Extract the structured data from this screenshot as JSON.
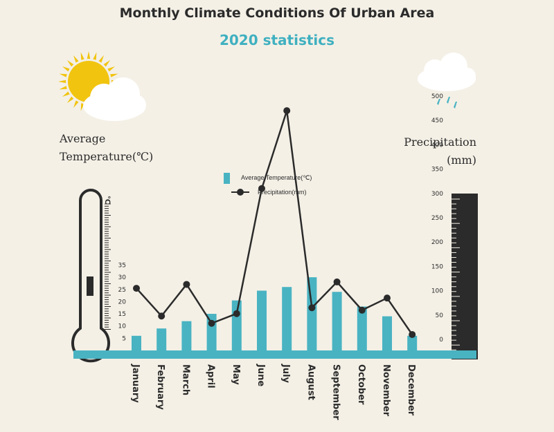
{
  "title": "Monthly Climate Conditions  Of Urban Area",
  "subtitle": "2020 statistics",
  "left_axis_label_line1": "Average",
  "left_axis_label_line2": "Temperature(℃)",
  "right_axis_label_line1": "Precipitation",
  "right_axis_label_line2": "(mm)",
  "thermometer_unit": "℃",
  "colors": {
    "bar": "#49b3c2",
    "line": "#2b2b2b",
    "background": "#f4f0e6",
    "title": "#2b2b2b",
    "subtitle": "#3fb0c0",
    "sun": "#f1c40f",
    "rain": "#49b3c2"
  },
  "icons": [
    "sun-cloud-icon",
    "rain-cloud-icon",
    "thermometer-icon",
    "ruler-icon"
  ],
  "chart_data": {
    "type": "bar",
    "categories": [
      "January",
      "February",
      "March",
      "April",
      "May",
      "June",
      "July",
      "August",
      "September",
      "October",
      "November",
      "December"
    ],
    "series": [
      {
        "name": "Average Temperature(℃)",
        "type": "bar",
        "axis": "left",
        "values": [
          6,
          9,
          12,
          15,
          20.5,
          24.5,
          26,
          30,
          24,
          18,
          14,
          6
        ]
      },
      {
        "name": "Precipitation(mm)",
        "type": "line",
        "axis": "right",
        "values": [
          105,
          48,
          113,
          33,
          53,
          310,
          470,
          65,
          118,
          60,
          85,
          10
        ]
      }
    ],
    "left_axis": {
      "ticks": [
        5,
        10,
        15,
        20,
        25,
        30,
        35
      ],
      "ylim": [
        0,
        35
      ]
    },
    "right_axis": {
      "ticks": [
        0,
        50,
        100,
        150,
        200,
        250,
        300,
        350,
        400,
        450,
        500
      ],
      "ylim": [
        0,
        500
      ]
    },
    "legend": {
      "placement": "top-center"
    },
    "grid": false
  }
}
